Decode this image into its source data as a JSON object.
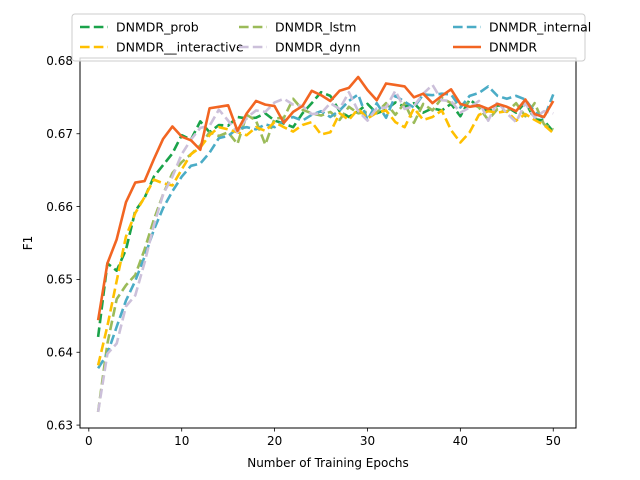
{
  "chart_data": {
    "type": "line",
    "title": "",
    "xlabel": "Number of Training Epochs",
    "ylabel": "F1",
    "xlim": [
      -0.95,
      52.45
    ],
    "ylim": [
      0.6296,
      0.6804
    ],
    "xticks": [
      0,
      10,
      20,
      30,
      40,
      50
    ],
    "yticks": [
      0.63,
      0.64,
      0.65,
      0.66,
      0.67,
      0.68
    ],
    "yticks_labels": [
      "0.63",
      "0.64",
      "0.65",
      "0.66",
      "0.67",
      "0.68"
    ],
    "grid": false,
    "legend_position": "top",
    "x": [
      1,
      2,
      3,
      4,
      5,
      6,
      7,
      8,
      9,
      10,
      11,
      12,
      13,
      14,
      15,
      16,
      17,
      18,
      19,
      20,
      21,
      22,
      23,
      24,
      25,
      26,
      27,
      28,
      29,
      30,
      31,
      32,
      33,
      34,
      35,
      36,
      37,
      38,
      39,
      40,
      41,
      42,
      43,
      44,
      45,
      46,
      47,
      48,
      49,
      50
    ],
    "series": [
      {
        "name": "DNMDR_prob",
        "color": "#1aa34a",
        "dash": "dashed",
        "values": [
          0.6421,
          0.6522,
          0.6512,
          0.6541,
          0.6594,
          0.6612,
          0.6641,
          0.6657,
          0.6673,
          0.6698,
          0.6692,
          0.6717,
          0.6702,
          0.6712,
          0.6711,
          0.6723,
          0.6721,
          0.6722,
          0.6728,
          0.6718,
          0.6714,
          0.6709,
          0.6728,
          0.6742,
          0.6757,
          0.6752,
          0.6731,
          0.6723,
          0.6731,
          0.6741,
          0.6728,
          0.6733,
          0.6743,
          0.6737,
          0.6742,
          0.6729,
          0.6735,
          0.6732,
          0.6741,
          0.6724,
          0.6747,
          0.6737,
          0.6731,
          0.6739,
          0.6737,
          0.6729,
          0.6743,
          0.672,
          0.6718,
          0.6703
        ]
      },
      {
        "name": "DNMDR_lstm",
        "color": "#9bbb59",
        "dash": "dashed",
        "values": [
          0.6318,
          0.6412,
          0.6473,
          0.6492,
          0.6506,
          0.6541,
          0.6582,
          0.6617,
          0.6646,
          0.6661,
          0.6672,
          0.6684,
          0.6702,
          0.6697,
          0.6702,
          0.6686,
          0.6726,
          0.6718,
          0.6685,
          0.6721,
          0.6722,
          0.6748,
          0.6733,
          0.6728,
          0.6725,
          0.673,
          0.6719,
          0.6737,
          0.6728,
          0.673,
          0.6729,
          0.6742,
          0.6726,
          0.6742,
          0.6715,
          0.6741,
          0.6732,
          0.6749,
          0.6742,
          0.6739,
          0.6743,
          0.6736,
          0.6719,
          0.6734,
          0.673,
          0.6742,
          0.6724,
          0.6742,
          0.6713,
          0.6706
        ]
      },
      {
        "name": "DNMDR_internal",
        "color": "#4bacc6",
        "dash": "dashed",
        "values": [
          0.6378,
          0.6398,
          0.6435,
          0.6471,
          0.6498,
          0.6531,
          0.6568,
          0.6598,
          0.6621,
          0.6641,
          0.6656,
          0.6659,
          0.6674,
          0.6694,
          0.6697,
          0.6707,
          0.6709,
          0.6706,
          0.6713,
          0.6709,
          0.6718,
          0.6723,
          0.6718,
          0.6726,
          0.6731,
          0.6723,
          0.6732,
          0.6745,
          0.6754,
          0.6719,
          0.6742,
          0.6722,
          0.6752,
          0.6744,
          0.6736,
          0.6754,
          0.6753,
          0.6755,
          0.6754,
          0.6736,
          0.6752,
          0.6756,
          0.6765,
          0.6752,
          0.6748,
          0.6752,
          0.6747,
          0.673,
          0.6721,
          0.6754
        ]
      },
      {
        "name": "DNMDR__interactive",
        "color": "#ffc000",
        "dash": "dashed",
        "values": [
          0.6382,
          0.6436,
          0.6498,
          0.6559,
          0.6591,
          0.6613,
          0.6637,
          0.6632,
          0.6629,
          0.6651,
          0.6672,
          0.6681,
          0.6698,
          0.6709,
          0.6706,
          0.6702,
          0.6698,
          0.6709,
          0.6704,
          0.6716,
          0.6709,
          0.6703,
          0.6712,
          0.6716,
          0.6699,
          0.6702,
          0.6728,
          0.6719,
          0.6734,
          0.6721,
          0.6729,
          0.6732,
          0.6716,
          0.6709,
          0.6735,
          0.6719,
          0.6723,
          0.6732,
          0.6705,
          0.6688,
          0.6702,
          0.6726,
          0.6731,
          0.6729,
          0.6731,
          0.6718,
          0.6727,
          0.6719,
          0.6712,
          0.6701
        ]
      },
      {
        "name": "DNMDR_dynn",
        "color": "#ccc0da",
        "dash": "dashed",
        "values": [
          0.6318,
          0.6398,
          0.6412,
          0.6463,
          0.6478,
          0.6523,
          0.6574,
          0.6617,
          0.6641,
          0.6672,
          0.6692,
          0.6708,
          0.6711,
          0.6733,
          0.6718,
          0.6702,
          0.6722,
          0.6732,
          0.673,
          0.6743,
          0.6748,
          0.674,
          0.6738,
          0.6727,
          0.6728,
          0.6742,
          0.6734,
          0.6757,
          0.6731,
          0.6718,
          0.6735,
          0.6736,
          0.6759,
          0.6734,
          0.6738,
          0.6755,
          0.6767,
          0.6746,
          0.6745,
          0.6729,
          0.6736,
          0.6745,
          0.6718,
          0.6744,
          0.6728,
          0.6716,
          0.6742,
          0.6722,
          0.6731,
          0.6728
        ]
      },
      {
        "name": "DNMDR",
        "color": "#f26522",
        "dash": "solid",
        "values": [
          0.6444,
          0.6522,
          0.6555,
          0.6606,
          0.6633,
          0.6635,
          0.6665,
          0.6693,
          0.671,
          0.6696,
          0.6691,
          0.6678,
          0.6735,
          0.6737,
          0.6739,
          0.6704,
          0.6728,
          0.6745,
          0.674,
          0.6738,
          0.6715,
          0.673,
          0.6738,
          0.6759,
          0.6753,
          0.6745,
          0.6759,
          0.6763,
          0.6778,
          0.676,
          0.6746,
          0.6769,
          0.6767,
          0.6765,
          0.675,
          0.6755,
          0.6742,
          0.6752,
          0.6761,
          0.6741,
          0.6737,
          0.6739,
          0.6734,
          0.6741,
          0.6737,
          0.6731,
          0.6747,
          0.6727,
          0.6723,
          0.6745
        ]
      }
    ]
  }
}
